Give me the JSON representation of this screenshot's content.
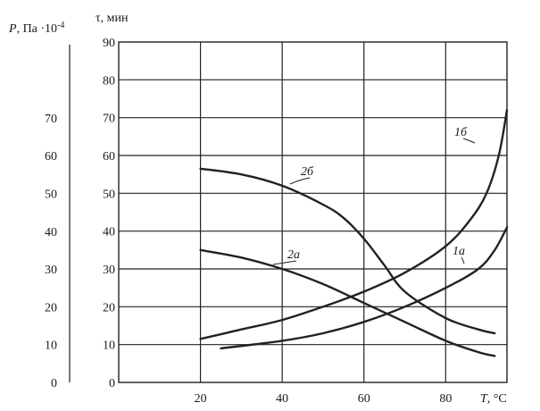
{
  "chart_data": {
    "type": "line",
    "x_axis": {
      "label_symbol": "T",
      "label_unit": ", °C",
      "ticks": [
        "20",
        "40",
        "60",
        "80"
      ],
      "range": [
        0,
        95
      ]
    },
    "y_axis_left": {
      "label_symbol": "P",
      "label_unit": ", Па ·10",
      "label_exponent": "-4",
      "ticks": [
        "0",
        "10",
        "20",
        "30",
        "40",
        "50",
        "60",
        "70"
      ],
      "range": [
        0,
        90
      ]
    },
    "y_axis_right": {
      "label": "τ, мин",
      "ticks": [
        "0",
        "10",
        "20",
        "30",
        "40",
        "50",
        "60",
        "70",
        "80",
        "90"
      ],
      "range": [
        0,
        90
      ]
    },
    "grid": true,
    "series": [
      {
        "name": "1а",
        "x": [
          25,
          40,
          50,
          60,
          70,
          80,
          88,
          92,
          95
        ],
        "y": [
          9,
          11,
          13,
          16,
          20,
          25,
          30,
          35,
          41
        ]
      },
      {
        "name": "1б",
        "x": [
          20,
          30,
          40,
          50,
          60,
          70,
          80,
          86,
          90,
          93,
          95
        ],
        "y": [
          11.5,
          14,
          16.5,
          20,
          24,
          29,
          36,
          43,
          50,
          60,
          72
        ]
      },
      {
        "name": "2а",
        "x": [
          20,
          30,
          40,
          50,
          60,
          70,
          80,
          88,
          92
        ],
        "y": [
          35,
          33,
          30,
          26,
          21,
          16,
          11,
          8,
          7
        ]
      },
      {
        "name": "2б",
        "x": [
          20,
          30,
          40,
          50,
          55,
          60,
          65,
          70,
          80,
          88,
          92
        ],
        "y": [
          56.5,
          55,
          52,
          47,
          43.5,
          38,
          31,
          24,
          17,
          14,
          13
        ]
      }
    ]
  }
}
